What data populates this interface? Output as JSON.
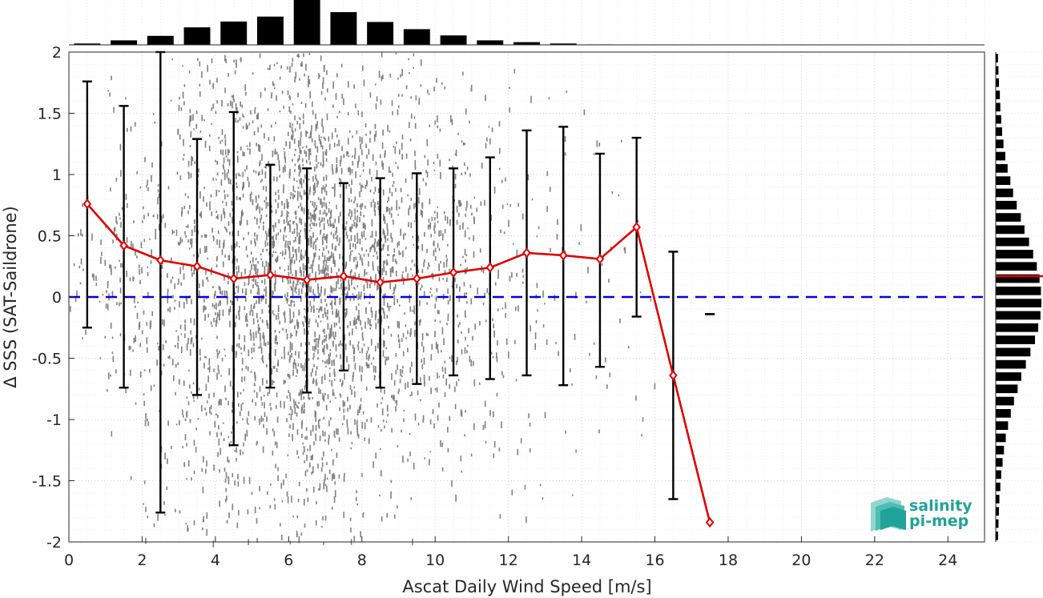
{
  "chart_data": {
    "type": "scatter",
    "xlabel": "Ascat Daily Wind Speed [m/s]",
    "ylabel": "Δ SSS (SAT-Saildrone)",
    "xlim": [
      0,
      25
    ],
    "ylim": [
      -2,
      2
    ],
    "x_ticks": [
      0,
      2,
      4,
      6,
      8,
      10,
      12,
      14,
      16,
      18,
      20,
      22,
      24
    ],
    "y_ticks": [
      -2,
      -1.5,
      -1,
      -0.5,
      0,
      0.5,
      1,
      1.5,
      2
    ],
    "x_tick_labels": [
      "0",
      "2",
      "4",
      "6",
      "8",
      "10",
      "12",
      "14",
      "16",
      "18",
      "20",
      "22",
      "24"
    ],
    "y_tick_labels": [
      "-2",
      "-1.5",
      "-1",
      "-0.5",
      "0",
      "0.5",
      "1",
      "1.5",
      "2"
    ],
    "grid": "dotted",
    "scatter_color": "#808080",
    "mean_line": {
      "color": "#e00000",
      "x": [
        0.5,
        1.5,
        2.5,
        3.5,
        4.5,
        5.5,
        6.5,
        7.5,
        8.5,
        9.5,
        10.5,
        11.5,
        12.5,
        13.5,
        14.5,
        15.5,
        16.5,
        17.5
      ],
      "y": [
        0.76,
        0.42,
        0.3,
        0.25,
        0.15,
        0.18,
        0.14,
        0.17,
        0.12,
        0.15,
        0.2,
        0.24,
        0.36,
        0.34,
        0.31,
        0.57,
        -0.64,
        -1.84
      ]
    },
    "error_bars": {
      "color": "#000000",
      "x": [
        0.5,
        1.5,
        2.5,
        3.5,
        4.5,
        5.5,
        6.5,
        7.5,
        8.5,
        9.5,
        10.5,
        11.5,
        12.5,
        13.5,
        14.5,
        15.5,
        16.5,
        17.5
      ],
      "lower": [
        -0.25,
        -0.74,
        -1.76,
        -0.8,
        -1.21,
        -0.74,
        -0.78,
        -0.6,
        -0.74,
        -0.71,
        -0.64,
        -0.67,
        -0.64,
        -0.72,
        -0.57,
        -0.16,
        -1.65,
        -0.14
      ],
      "upper": [
        1.76,
        1.56,
        2.0,
        1.29,
        1.51,
        1.08,
        1.05,
        0.93,
        0.97,
        1.01,
        1.05,
        1.14,
        1.36,
        1.39,
        1.17,
        1.3,
        0.37,
        -0.14
      ]
    },
    "zero_line": {
      "y": 0,
      "color": "#0000dd",
      "style": "dashed"
    },
    "top_histogram": {
      "color": "#000000",
      "bin_centers": [
        0.5,
        1.5,
        2.5,
        3.5,
        4.5,
        5.5,
        6.5,
        7.5,
        8.5,
        9.5,
        10.5,
        11.5,
        12.5,
        13.5,
        14.5,
        15.5
      ],
      "relative_counts": [
        0.03,
        0.1,
        0.2,
        0.39,
        0.52,
        0.63,
        1.0,
        0.73,
        0.51,
        0.35,
        0.21,
        0.1,
        0.06,
        0.03,
        0.01,
        0.0
      ]
    },
    "right_histogram": {
      "color": "#000000",
      "mean_marker_color": "#e00000",
      "mean_value": 0.17,
      "bin_centers": [
        -1.95,
        -1.85,
        -1.75,
        -1.65,
        -1.55,
        -1.45,
        -1.35,
        -1.25,
        -1.15,
        -1.05,
        -0.95,
        -0.85,
        -0.75,
        -0.65,
        -0.55,
        -0.45,
        -0.35,
        -0.25,
        -0.15,
        -0.05,
        0.05,
        0.15,
        0.25,
        0.35,
        0.45,
        0.55,
        0.65,
        0.75,
        0.85,
        0.95,
        1.05,
        1.15,
        1.25,
        1.35,
        1.45,
        1.55,
        1.65,
        1.75,
        1.85,
        1.95
      ],
      "relative_counts": [
        0.05,
        0.06,
        0.07,
        0.08,
        0.1,
        0.12,
        0.15,
        0.18,
        0.22,
        0.27,
        0.33,
        0.4,
        0.48,
        0.56,
        0.66,
        0.76,
        0.86,
        0.93,
        0.98,
        1.0,
        0.99,
        0.96,
        0.9,
        0.82,
        0.73,
        0.63,
        0.55,
        0.46,
        0.38,
        0.32,
        0.26,
        0.21,
        0.17,
        0.14,
        0.12,
        0.1,
        0.09,
        0.07,
        0.06,
        0.05
      ]
    },
    "logo": {
      "line1": "salinity",
      "line2": "pi-mep",
      "color": "#1fa39a"
    }
  }
}
